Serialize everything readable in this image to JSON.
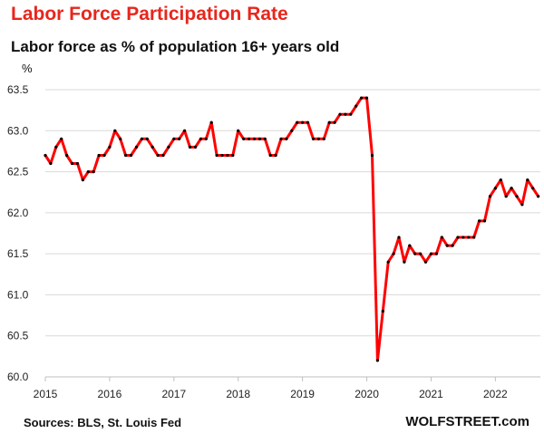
{
  "chart_data": {
    "type": "line",
    "title": "Labor Force Participation Rate",
    "subtitle": "Labor force as % of population 16+ years old",
    "ylabel": "%",
    "xlabel": "",
    "ylim": [
      60.0,
      63.5
    ],
    "xlim": [
      2015,
      2022.7
    ],
    "yticks": [
      "60.0",
      "60.5",
      "61.0",
      "61.5",
      "62.0",
      "62.5",
      "63.0",
      "63.5"
    ],
    "xticks": [
      "2015",
      "2016",
      "2017",
      "2018",
      "2019",
      "2020",
      "2021",
      "2022"
    ],
    "grid": true,
    "series": [
      {
        "color": "#ff0000",
        "marker_color": "#000000",
        "start": "2015-01",
        "values": [
          62.7,
          62.6,
          62.8,
          62.9,
          62.7,
          62.6,
          62.6,
          62.4,
          62.5,
          62.5,
          62.7,
          62.7,
          62.8,
          63.0,
          62.9,
          62.7,
          62.7,
          62.8,
          62.9,
          62.9,
          62.8,
          62.7,
          62.7,
          62.8,
          62.9,
          62.9,
          63.0,
          62.8,
          62.8,
          62.9,
          62.9,
          63.1,
          62.7,
          62.7,
          62.7,
          62.7,
          63.0,
          62.9,
          62.9,
          62.9,
          62.9,
          62.9,
          62.7,
          62.7,
          62.9,
          62.9,
          63.0,
          63.1,
          63.1,
          63.1,
          62.9,
          62.9,
          62.9,
          63.1,
          63.1,
          63.2,
          63.2,
          63.2,
          63.3,
          63.4,
          63.4,
          62.7,
          60.2,
          60.8,
          61.4,
          61.5,
          61.7,
          61.4,
          61.6,
          61.5,
          61.5,
          61.4,
          61.5,
          61.5,
          61.7,
          61.6,
          61.6,
          61.7,
          61.7,
          61.7,
          61.7,
          61.9,
          61.9,
          62.2,
          62.3,
          62.4,
          62.2,
          62.3,
          62.2,
          62.1,
          62.4,
          62.3,
          62.2
        ]
      }
    ]
  },
  "footer": {
    "source": "Sources: BLS, St. Louis Fed",
    "brand": "WOLFSTREET.com"
  }
}
